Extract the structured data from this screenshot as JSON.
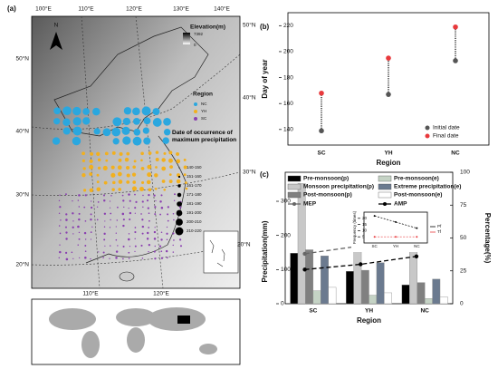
{
  "map": {
    "label": "(a)",
    "top_lon": [
      "100°E",
      "110°E",
      "120°E",
      "130°E",
      "140°E"
    ],
    "bottom_lon": [
      "110°E",
      "120°E"
    ],
    "left_lat": [
      "50°N",
      "40°N",
      "30°N",
      "20°N"
    ],
    "right_lat": [
      "50°N",
      "40°N",
      "30°N",
      "20°N"
    ],
    "north": "N",
    "elevation_title": "Elevation(m)",
    "elevation_max": "7392",
    "elevation_min": "0",
    "region_title": "Region",
    "regions": [
      "NC",
      "YH",
      "SC"
    ],
    "date_title": "Date of occurrence of maximum precipitation",
    "date_classes": [
      "140-150",
      "151-160",
      "161-170",
      "171-180",
      "181-190",
      "191-200",
      "200-210",
      "210-220"
    ]
  },
  "chart_data": [
    {
      "type": "dumbbell",
      "label": "(b)",
      "ylabel": "Day of year",
      "xlabel": "Region",
      "categories": [
        "SC",
        "YH",
        "NC"
      ],
      "series": [
        {
          "name": "Initial date",
          "color": "#555555",
          "values": [
            139,
            167,
            193
          ]
        },
        {
          "name": "Final date",
          "color": "#e8393c",
          "values": [
            168,
            195,
            219
          ]
        }
      ],
      "ylim": [
        128,
        230
      ],
      "yticks": [
        140,
        160,
        180,
        200,
        220
      ]
    },
    {
      "type": "bar",
      "label": "(c)",
      "ylabel": "Precipitation(mm)",
      "y2label": "Percentage(%)",
      "xlabel": "Region",
      "categories": [
        "SC",
        "YH",
        "NC"
      ],
      "series": [
        {
          "name": "Pre-monsoon(p)",
          "color": "#000000",
          "values": [
            148,
            95,
            55
          ]
        },
        {
          "name": "Monsoon precipitation(p)",
          "color": "#c8c8c8",
          "values": [
            352,
            268,
            238
          ]
        },
        {
          "name": "Post-monsoon(p)",
          "color": "#808080",
          "values": [
            158,
            98,
            62
          ]
        },
        {
          "name": "Pre-monsoon(e)",
          "color": "#c5d3c5",
          "values": [
            38,
            25,
            15
          ]
        },
        {
          "name": "Extreme precipitation(e)",
          "color": "#6b7a8f",
          "values": [
            140,
            120,
            72
          ]
        },
        {
          "name": "Post-monsoon(e)",
          "color": "#ffffff",
          "values": [
            48,
            32,
            20
          ]
        },
        {
          "name": "MEP",
          "color": "#666666",
          "axis": "y2",
          "values": [
            38,
            44,
            44
          ]
        },
        {
          "name": "AMP",
          "color": "#000000",
          "axis": "y2",
          "values": [
            26,
            30,
            36
          ]
        }
      ],
      "ylim": [
        0,
        385
      ],
      "yticks": [
        0,
        100,
        200,
        300
      ],
      "y2lim": [
        0,
        100
      ],
      "y2ticks": [
        0,
        25,
        50,
        75,
        100
      ]
    },
    {
      "type": "line",
      "ylabel": "Frequency (times)",
      "categories": [
        "SC",
        "YH",
        "NC"
      ],
      "series": [
        {
          "name": "Pf",
          "color": "#000000",
          "values": [
            22,
            17,
            12
          ]
        },
        {
          "name": "Tf",
          "color": "#e8393c",
          "values": [
            5,
            5,
            5
          ]
        }
      ],
      "ylim": [
        0,
        25
      ],
      "yticks": [
        5,
        10,
        15,
        20
      ]
    }
  ]
}
